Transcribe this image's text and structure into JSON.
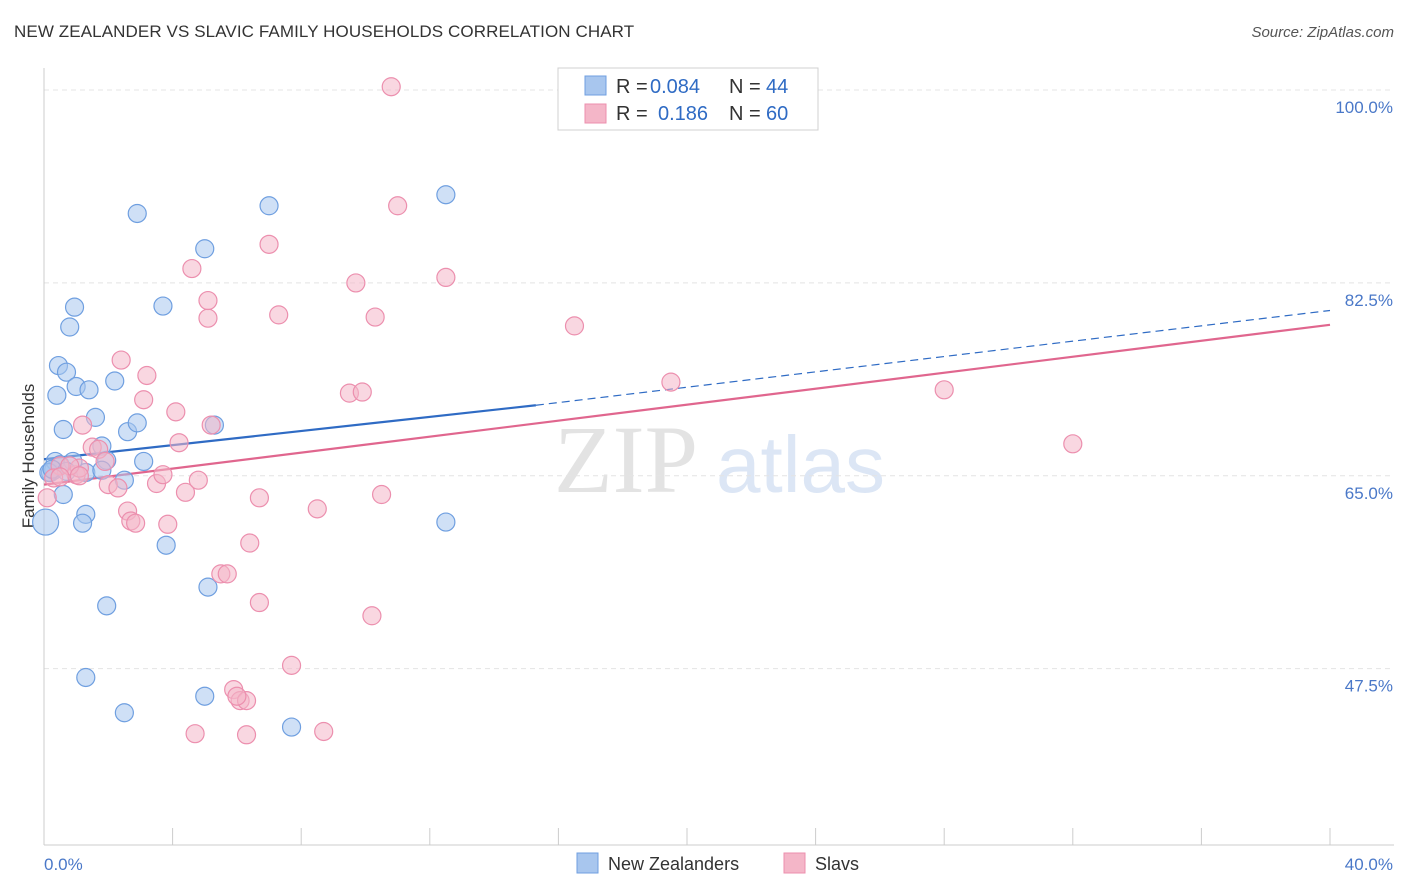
{
  "title": "NEW ZEALANDER VS SLAVIC FAMILY HOUSEHOLDS CORRELATION CHART",
  "source": "Source: ZipAtlas.com",
  "watermark": {
    "zip": "ZIP",
    "atlas": "atlas"
  },
  "legend": {
    "rows": [
      {
        "r_label": "R =",
        "r_value": "0.084",
        "n_label": "N =",
        "n_value": "44",
        "color": "#a8c6ee"
      },
      {
        "r_label": "R =",
        "r_value": "0.186",
        "n_label": "N =",
        "n_value": "60",
        "color": "#f4b6c8"
      }
    ]
  },
  "chart_data": {
    "type": "scatter",
    "title": "NEW ZEALANDER VS SLAVIC FAMILY HOUSEHOLDS CORRELATION CHART",
    "xlabel": "",
    "ylabel": "Family Households",
    "xlim": [
      0,
      40
    ],
    "ylim": [
      31.5,
      102
    ],
    "x_tick_labels": [
      "0.0%",
      "40.0%"
    ],
    "y_ticks": [
      47.5,
      65.0,
      82.5,
      100.0
    ],
    "y_tick_labels": [
      "47.5%",
      "65.0%",
      "82.5%",
      "100.0%"
    ],
    "series": [
      {
        "name": "New Zealanders",
        "color": "#6f9fe0",
        "fill": "#a8c6ee",
        "trend": {
          "x0": 0,
          "y0": 66.5,
          "x1": 15.3,
          "y1": 71.4,
          "dash_to_x": 40,
          "dash_to_y": 80.0,
          "color": "#2f6bc4"
        },
        "points": [
          [
            0.05,
            60.8
          ],
          [
            0.2,
            65.3
          ],
          [
            0.3,
            65.5
          ],
          [
            0.35,
            66.3
          ],
          [
            0.5,
            66.0
          ],
          [
            0.6,
            63.3
          ],
          [
            0.4,
            72.3
          ],
          [
            0.45,
            75.0
          ],
          [
            0.6,
            69.2
          ],
          [
            0.7,
            74.4
          ],
          [
            0.8,
            78.5
          ],
          [
            0.95,
            80.3
          ],
          [
            1.0,
            73.1
          ],
          [
            1.4,
            72.8
          ],
          [
            1.6,
            70.3
          ],
          [
            1.3,
            65.3
          ],
          [
            0.9,
            66.3
          ],
          [
            1.3,
            61.5
          ],
          [
            1.2,
            60.7
          ],
          [
            1.8,
            67.7
          ],
          [
            1.95,
            66.4
          ],
          [
            1.8,
            65.5
          ],
          [
            2.2,
            73.6
          ],
          [
            2.5,
            64.6
          ],
          [
            2.6,
            69.0
          ],
          [
            2.9,
            69.8
          ],
          [
            3.1,
            66.3
          ],
          [
            3.8,
            58.7
          ],
          [
            1.95,
            53.2
          ],
          [
            1.3,
            46.7
          ],
          [
            2.5,
            43.5
          ],
          [
            5.0,
            45.0
          ],
          [
            5.1,
            54.9
          ],
          [
            5.3,
            69.6
          ],
          [
            5.0,
            85.6
          ],
          [
            7.0,
            89.5
          ],
          [
            2.9,
            88.8
          ],
          [
            3.7,
            80.4
          ],
          [
            7.7,
            42.2
          ],
          [
            12.5,
            90.5
          ],
          [
            12.5,
            60.8
          ],
          [
            0.15,
            65.3
          ],
          [
            0.25,
            65.6
          ],
          [
            0.7,
            65.4
          ]
        ]
      },
      {
        "name": "Slavs",
        "color": "#ec8fae",
        "fill": "#f4b6c8",
        "trend": {
          "x0": 0,
          "y0": 64.2,
          "x1": 40,
          "y1": 78.7,
          "color": "#e0668e"
        },
        "points": [
          [
            0.1,
            63.0
          ],
          [
            0.5,
            65.9
          ],
          [
            1.0,
            65.1
          ],
          [
            1.1,
            65.7
          ],
          [
            1.2,
            69.6
          ],
          [
            1.5,
            67.6
          ],
          [
            1.7,
            67.4
          ],
          [
            1.9,
            66.3
          ],
          [
            2.0,
            64.2
          ],
          [
            2.3,
            63.9
          ],
          [
            2.4,
            75.5
          ],
          [
            2.6,
            61.8
          ],
          [
            2.7,
            60.9
          ],
          [
            2.85,
            60.7
          ],
          [
            3.1,
            71.9
          ],
          [
            3.2,
            74.1
          ],
          [
            3.5,
            64.3
          ],
          [
            3.7,
            65.1
          ],
          [
            3.85,
            60.6
          ],
          [
            4.1,
            70.8
          ],
          [
            4.2,
            68.0
          ],
          [
            4.4,
            63.5
          ],
          [
            4.6,
            83.8
          ],
          [
            4.8,
            64.6
          ],
          [
            5.1,
            79.3
          ],
          [
            5.1,
            80.9
          ],
          [
            5.2,
            69.6
          ],
          [
            5.5,
            56.1
          ],
          [
            5.7,
            56.1
          ],
          [
            5.9,
            45.6
          ],
          [
            6.1,
            44.6
          ],
          [
            6.3,
            44.6
          ],
          [
            6.0,
            45.0
          ],
          [
            6.4,
            58.9
          ],
          [
            6.7,
            63.0
          ],
          [
            6.7,
            53.5
          ],
          [
            7.0,
            86.0
          ],
          [
            7.3,
            79.6
          ],
          [
            7.7,
            47.8
          ],
          [
            8.5,
            62.0
          ],
          [
            8.7,
            41.8
          ],
          [
            9.5,
            72.5
          ],
          [
            9.7,
            82.5
          ],
          [
            9.9,
            72.6
          ],
          [
            10.2,
            52.3
          ],
          [
            10.3,
            79.4
          ],
          [
            10.5,
            63.3
          ],
          [
            10.8,
            100.3
          ],
          [
            11.0,
            89.5
          ],
          [
            12.5,
            83.0
          ],
          [
            16.5,
            78.6
          ],
          [
            19.5,
            73.5
          ],
          [
            28.0,
            72.8
          ],
          [
            32.0,
            67.9
          ],
          [
            4.7,
            41.6
          ],
          [
            6.3,
            41.5
          ],
          [
            0.3,
            64.8
          ],
          [
            0.8,
            65.9
          ],
          [
            1.1,
            65.0
          ],
          [
            0.5,
            64.9
          ]
        ]
      }
    ]
  },
  "bottom_legend": [
    {
      "label": "New Zealanders",
      "color": "#a8c6ee"
    },
    {
      "label": "Slavs",
      "color": "#f4b6c8"
    }
  ]
}
